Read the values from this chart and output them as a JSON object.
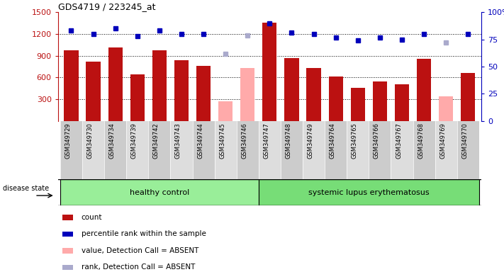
{
  "title": "GDS4719 / 223245_at",
  "samples": [
    "GSM349729",
    "GSM349730",
    "GSM349734",
    "GSM349739",
    "GSM349742",
    "GSM349743",
    "GSM349744",
    "GSM349745",
    "GSM349746",
    "GSM349747",
    "GSM349748",
    "GSM349749",
    "GSM349764",
    "GSM349765",
    "GSM349766",
    "GSM349767",
    "GSM349768",
    "GSM349769",
    "GSM349770"
  ],
  "counts": [
    975,
    815,
    1010,
    645,
    975,
    840,
    760,
    null,
    null,
    1360,
    870,
    730,
    610,
    460,
    550,
    510,
    860,
    null,
    660
  ],
  "counts_absent": [
    null,
    null,
    null,
    null,
    null,
    null,
    null,
    270,
    730,
    null,
    null,
    null,
    null,
    null,
    null,
    null,
    null,
    340,
    null
  ],
  "percentile_ranks": [
    83,
    80,
    85,
    78,
    83,
    80,
    80,
    null,
    null,
    90,
    81,
    80,
    77,
    74,
    77,
    75,
    80,
    null,
    80
  ],
  "percentile_ranks_absent": [
    null,
    null,
    null,
    null,
    null,
    null,
    null,
    62,
    79,
    null,
    null,
    null,
    null,
    null,
    null,
    null,
    null,
    72,
    null
  ],
  "healthy_control_indices": [
    0,
    1,
    2,
    3,
    4,
    5,
    6,
    7,
    8
  ],
  "lupus_indices": [
    9,
    10,
    11,
    12,
    13,
    14,
    15,
    16,
    17,
    18
  ],
  "ylim_left": [
    0,
    1500
  ],
  "ylim_right": [
    0,
    100
  ],
  "yticks_left": [
    300,
    600,
    900,
    1200,
    1500
  ],
  "yticks_right": [
    0,
    25,
    50,
    75,
    100
  ],
  "bar_color_present": "#bb1111",
  "bar_color_absent": "#ffaaaa",
  "dot_color_present": "#0000bb",
  "dot_color_absent": "#aaaacc",
  "healthy_bg": "#99ee99",
  "lupus_bg": "#77dd77",
  "sample_bg_even": "#cccccc",
  "sample_bg_odd": "#dddddd",
  "group_label_healthy": "healthy control",
  "group_label_lupus": "systemic lupus erythematosus",
  "disease_state_label": "disease state",
  "legend_items": [
    {
      "label": "count",
      "color": "#bb1111"
    },
    {
      "label": "percentile rank within the sample",
      "color": "#0000bb"
    },
    {
      "label": "value, Detection Call = ABSENT",
      "color": "#ffaaaa"
    },
    {
      "label": "rank, Detection Call = ABSENT",
      "color": "#aaaacc"
    }
  ]
}
